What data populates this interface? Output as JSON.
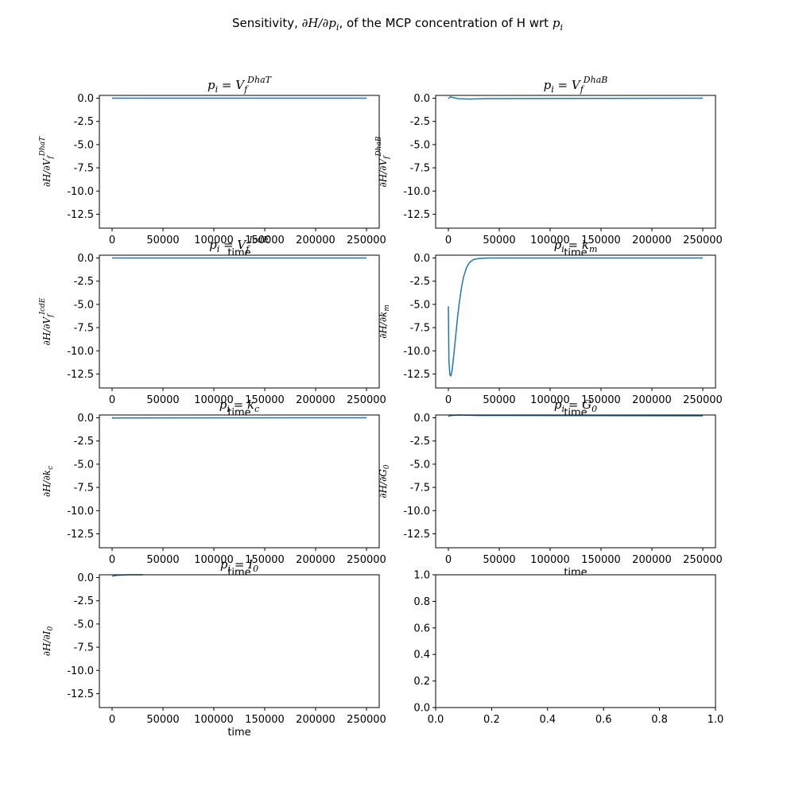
{
  "figure": {
    "title_prefix": "Sensitivity, ",
    "title_math1": "∂H/∂p",
    "title_sub1": "i",
    "title_middle": ", of the MCP concentration of H wrt ",
    "title_math2": "p",
    "title_sub2": "i"
  },
  "colors": {
    "line": "#1f77b4",
    "axes": "#000000",
    "background": "#ffffff"
  },
  "chart_data": [
    {
      "type": "line",
      "title_math": "p",
      "title_sub": "i",
      "title_rest": " = V",
      "title_sub2": "f",
      "title_sup": "DhaT",
      "ylabel_prefix": "∂H/∂V",
      "ylabel_sub": "f",
      "ylabel_sup": "DhaT",
      "xlabel": "time",
      "xlim": [
        -12500,
        262500
      ],
      "ylim": [
        -14,
        0.3
      ],
      "xticks": [
        0,
        50000,
        100000,
        150000,
        200000,
        250000
      ],
      "yticks": [
        0.0,
        -2.5,
        -5.0,
        -7.5,
        -10.0,
        -12.5
      ],
      "series": [
        {
          "x": [
            0,
            250000
          ],
          "y": [
            0,
            0
          ]
        }
      ]
    },
    {
      "type": "line",
      "title_math": "p",
      "title_sub": "i",
      "title_rest": " = V",
      "title_sub2": "f",
      "title_sup": "DhaB",
      "ylabel_prefix": "∂H/∂V",
      "ylabel_sub": "f",
      "ylabel_sup": "DhaB",
      "xlabel": "time",
      "xlim": [
        -12500,
        262500
      ],
      "ylim": [
        -14,
        0.3
      ],
      "xticks": [
        0,
        50000,
        100000,
        150000,
        200000,
        250000
      ],
      "yticks": [
        0.0,
        -2.5,
        -5.0,
        -7.5,
        -10.0,
        -12.5
      ],
      "series": [
        {
          "x": [
            0,
            2000,
            5000,
            10000,
            20000,
            35000,
            250000
          ],
          "y": [
            -0.05,
            0.15,
            0.05,
            -0.05,
            -0.1,
            -0.05,
            0
          ]
        }
      ]
    },
    {
      "type": "line",
      "title_math": "p",
      "title_sub": "i",
      "title_rest": " = V",
      "title_sub2": "f",
      "title_sup": "IcdE",
      "ylabel_prefix": "∂H/∂V",
      "ylabel_sub": "f",
      "ylabel_sup": "IcdE",
      "xlabel": "time",
      "xlim": [
        -12500,
        262500
      ],
      "ylim": [
        -14,
        0.3
      ],
      "xticks": [
        0,
        50000,
        100000,
        150000,
        200000,
        250000
      ],
      "yticks": [
        0.0,
        -2.5,
        -5.0,
        -7.5,
        -10.0,
        -12.5
      ],
      "series": [
        {
          "x": [
            0,
            250000
          ],
          "y": [
            0,
            0
          ]
        }
      ]
    },
    {
      "type": "line",
      "title_math": "p",
      "title_sub": "i",
      "title_rest": " = k",
      "title_sub2": "m",
      "title_sup": "",
      "ylabel_prefix": "∂H/∂k",
      "ylabel_sub": "m",
      "ylabel_sup": "",
      "xlabel": "time",
      "xlim": [
        -12500,
        262500
      ],
      "ylim": [
        -14,
        0.3
      ],
      "xticks": [
        0,
        50000,
        100000,
        150000,
        200000,
        250000
      ],
      "yticks": [
        0.0,
        -2.5,
        -5.0,
        -7.5,
        -10.0,
        -12.5
      ],
      "series": [
        {
          "x": [
            0,
            500,
            1500,
            2500,
            3500,
            5000,
            7000,
            9000,
            11000,
            13000,
            15000,
            18000,
            21000,
            25000,
            30000,
            40000,
            60000,
            250000
          ],
          "y": [
            -5.2,
            -11.0,
            -12.6,
            -12.7,
            -12.2,
            -10.8,
            -8.6,
            -6.4,
            -4.6,
            -3.1,
            -2.0,
            -1.0,
            -0.45,
            -0.15,
            -0.05,
            0,
            0,
            0
          ]
        }
      ]
    },
    {
      "type": "line",
      "title_math": "p",
      "title_sub": "i",
      "title_rest": " = k",
      "title_sub2": "c",
      "title_sup": "",
      "ylabel_prefix": "∂H/∂k",
      "ylabel_sub": "c",
      "ylabel_sup": "",
      "xlabel": "time",
      "xlim": [
        -12500,
        262500
      ],
      "ylim": [
        -14,
        0.3
      ],
      "xticks": [
        0,
        50000,
        100000,
        150000,
        200000,
        250000
      ],
      "yticks": [
        0.0,
        -2.5,
        -5.0,
        -7.5,
        -10.0,
        -12.5
      ],
      "series": [
        {
          "x": [
            0,
            1000,
            3000,
            250000
          ],
          "y": [
            0.05,
            -0.05,
            -0.02,
            0
          ]
        }
      ]
    },
    {
      "type": "line",
      "title_math": "p",
      "title_sub": "i",
      "title_rest": " = G",
      "title_sub2": "0",
      "title_sup": "",
      "ylabel_prefix": "∂H/∂G",
      "ylabel_sub": "0",
      "ylabel_sup": "",
      "xlabel": "time",
      "xlim": [
        -12500,
        262500
      ],
      "ylim": [
        -14,
        0.3
      ],
      "xticks": [
        0,
        50000,
        100000,
        150000,
        200000,
        250000
      ],
      "yticks": [
        0.0,
        -2.5,
        -5.0,
        -7.5,
        -10.0,
        -12.5
      ],
      "series": [
        {
          "x": [
            0,
            3000,
            10000,
            30000,
            250000
          ],
          "y": [
            0.15,
            0.25,
            0.3,
            0.25,
            0.2
          ]
        }
      ]
    },
    {
      "type": "line",
      "title_math": "p",
      "title_sub": "i",
      "title_rest": " = I",
      "title_sub2": "0",
      "title_sup": "",
      "ylabel_prefix": "∂H/∂I",
      "ylabel_sub": "0",
      "ylabel_sup": "",
      "xlabel": "time",
      "xlim": [
        -12500,
        262500
      ],
      "ylim": [
        -14,
        0.3
      ],
      "xticks": [
        0,
        50000,
        100000,
        150000,
        200000,
        250000
      ],
      "yticks": [
        0.0,
        -2.5,
        -5.0,
        -7.5,
        -10.0,
        -12.5
      ],
      "series": [
        {
          "x": [
            0,
            5000,
            15000,
            30000
          ],
          "y": [
            0.15,
            0.25,
            0.3,
            0.3
          ]
        }
      ]
    },
    {
      "type": "line",
      "title_math": "",
      "title_sub": "",
      "title_rest": "",
      "title_sub2": "",
      "title_sup": "",
      "ylabel_prefix": "",
      "ylabel_sub": "",
      "ylabel_sup": "",
      "xlabel": "",
      "xlim": [
        0,
        1
      ],
      "ylim": [
        0,
        1
      ],
      "xticks": [
        0.0,
        0.2,
        0.4,
        0.6,
        0.8,
        1.0
      ],
      "yticks": [
        0.0,
        0.2,
        0.4,
        0.6,
        0.8,
        1.0
      ],
      "series": []
    }
  ]
}
